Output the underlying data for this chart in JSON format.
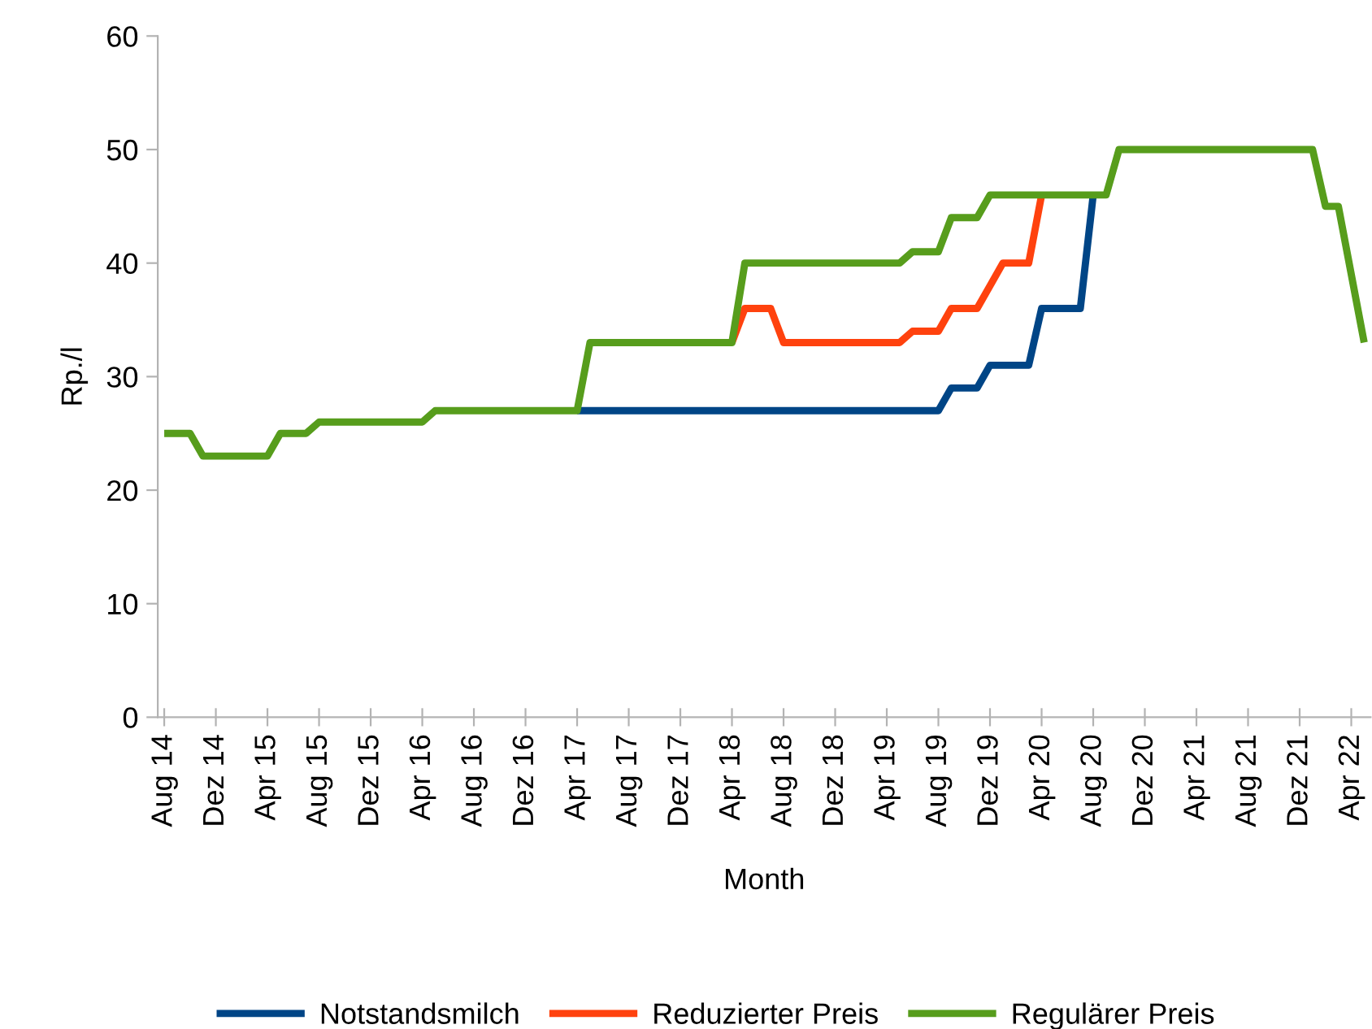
{
  "chart_data": {
    "type": "line",
    "xlabel": "Month",
    "ylabel": "Rp./l",
    "categories": [
      "Aug 14",
      null,
      null,
      null,
      "Dez 14",
      null,
      null,
      null,
      "Apr 15",
      null,
      null,
      null,
      "Aug 15",
      null,
      null,
      null,
      "Dez 15",
      null,
      null,
      null,
      "Apr 16",
      null,
      null,
      null,
      "Aug 16",
      null,
      null,
      null,
      "Dez 16",
      null,
      null,
      null,
      "Apr 17",
      null,
      null,
      null,
      "Aug 17",
      null,
      null,
      null,
      "Dez 17",
      null,
      null,
      null,
      "Apr 18",
      null,
      null,
      null,
      "Aug 18",
      null,
      null,
      null,
      "Dez 18",
      null,
      null,
      null,
      "Apr 19",
      null,
      null,
      null,
      "Aug 19",
      null,
      null,
      null,
      "Dez 19",
      null,
      null,
      null,
      "Apr 20",
      null,
      null,
      null,
      "Aug 20",
      null,
      null,
      null,
      "Dez 20",
      null,
      null,
      null,
      "Apr 21",
      null,
      null,
      null,
      "Aug 21",
      null,
      null,
      null,
      "Dez 21",
      null,
      null,
      null,
      "Apr 22",
      null
    ],
    "series": [
      {
        "name": "Notstandsmilch",
        "color": "#004586",
        "values": [
          null,
          null,
          null,
          null,
          null,
          null,
          null,
          null,
          null,
          null,
          null,
          null,
          null,
          null,
          null,
          null,
          null,
          null,
          null,
          null,
          null,
          null,
          null,
          null,
          null,
          null,
          null,
          null,
          null,
          null,
          null,
          null,
          27,
          27,
          27,
          27,
          27,
          27,
          27,
          27,
          27,
          27,
          27,
          27,
          27,
          27,
          27,
          27,
          27,
          27,
          27,
          27,
          27,
          27,
          27,
          27,
          27,
          27,
          27,
          27,
          27,
          29,
          29,
          29,
          31,
          31,
          31,
          31,
          36,
          36,
          36,
          36,
          46,
          null,
          null,
          null,
          null,
          null,
          null,
          null,
          null,
          null,
          null,
          null,
          null,
          null,
          null,
          null,
          null,
          null,
          null,
          null,
          null,
          null
        ]
      },
      {
        "name": "Reduzierter Preis",
        "color": "#ff420e",
        "values": [
          null,
          null,
          null,
          null,
          null,
          null,
          null,
          null,
          null,
          null,
          null,
          null,
          null,
          null,
          null,
          null,
          null,
          null,
          null,
          null,
          null,
          null,
          null,
          null,
          null,
          null,
          null,
          null,
          null,
          null,
          null,
          null,
          null,
          null,
          null,
          null,
          null,
          null,
          null,
          null,
          null,
          null,
          null,
          null,
          33,
          36,
          36,
          36,
          33,
          33,
          33,
          33,
          33,
          33,
          33,
          33,
          33,
          33,
          34,
          34,
          34,
          36,
          36,
          36,
          38,
          40,
          40,
          40,
          46,
          null,
          null,
          null,
          null,
          null,
          null,
          null,
          null,
          null,
          null,
          null,
          null,
          null,
          null,
          null,
          null,
          null,
          null,
          null,
          null,
          null,
          null,
          null,
          null,
          null
        ]
      },
      {
        "name": "Regulärer Preis",
        "color": "#579d1c",
        "values": [
          25,
          25,
          25,
          23,
          23,
          23,
          23,
          23,
          23,
          25,
          25,
          25,
          26,
          26,
          26,
          26,
          26,
          26,
          26,
          26,
          26,
          27,
          27,
          27,
          27,
          27,
          27,
          27,
          27,
          27,
          27,
          27,
          27,
          33,
          33,
          33,
          33,
          33,
          33,
          33,
          33,
          33,
          33,
          33,
          33,
          40,
          40,
          40,
          40,
          40,
          40,
          40,
          40,
          40,
          40,
          40,
          40,
          40,
          41,
          41,
          41,
          44,
          44,
          44,
          46,
          46,
          46,
          46,
          46,
          46,
          46,
          46,
          46,
          46,
          50,
          50,
          50,
          50,
          50,
          50,
          50,
          50,
          50,
          50,
          50,
          50,
          50,
          50,
          50,
          50,
          45,
          45,
          39,
          33
        ]
      }
    ],
    "ylim": [
      0,
      60
    ],
    "yticks": [
      0,
      10,
      20,
      30,
      40,
      50,
      60
    ],
    "legend": "bottom",
    "marker": "none",
    "line_style": "solid"
  }
}
